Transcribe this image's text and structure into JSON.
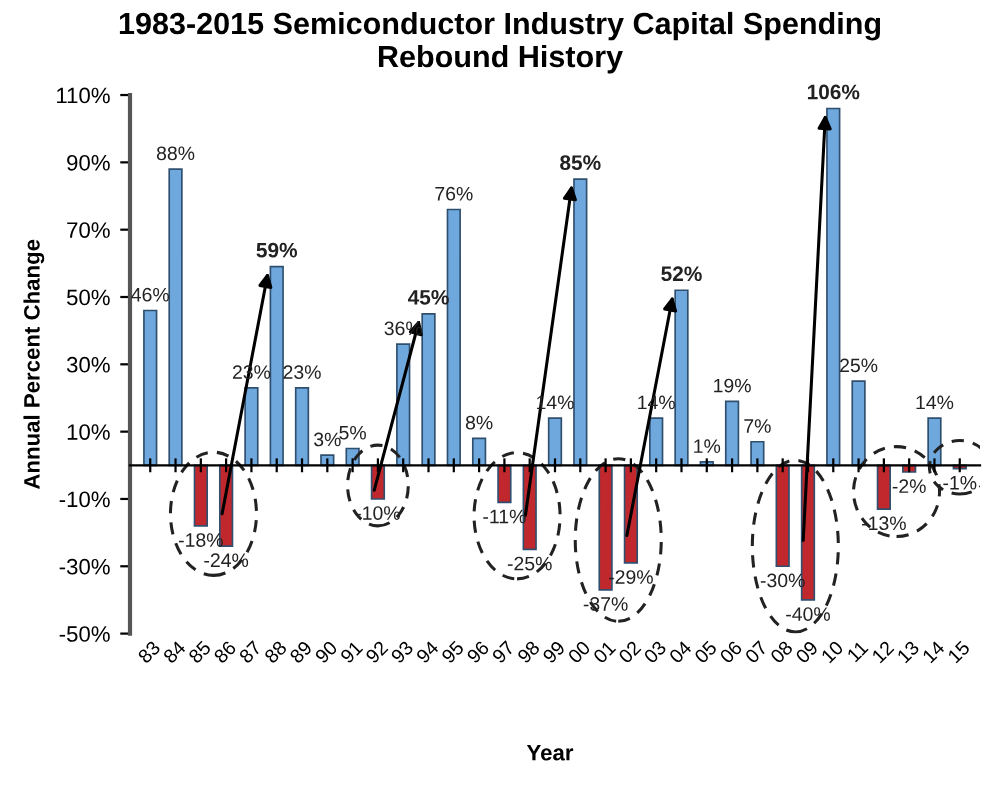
{
  "chart_data": {
    "type": "bar",
    "title": "1983-2015 Semiconductor Industry Capital Spending\nRebound History",
    "xlabel": "Year",
    "ylabel": "Annual Percent Change",
    "categories": [
      "83",
      "84",
      "85",
      "86",
      "87",
      "88",
      "89",
      "90",
      "91",
      "92",
      "93",
      "94",
      "95",
      "96",
      "97",
      "98",
      "99",
      "00",
      "01",
      "02",
      "03",
      "04",
      "05",
      "06",
      "07",
      "08",
      "09",
      "10",
      "11",
      "12",
      "13",
      "14",
      "15"
    ],
    "values": [
      46,
      88,
      -18,
      -24,
      23,
      59,
      23,
      3,
      5,
      -10,
      36,
      45,
      76,
      8,
      -11,
      -25,
      14,
      85,
      -37,
      -29,
      14,
      52,
      1,
      19,
      7,
      -30,
      -40,
      106,
      25,
      -13,
      -2,
      14,
      -1
    ],
    "value_labels": [
      "46%",
      "88%",
      "-18%",
      "-24%",
      "23%",
      "59%",
      "23%",
      "3%",
      "5%",
      "-10%",
      "36%",
      "45%",
      "76%",
      "8%",
      "-11%",
      "-25%",
      "14%",
      "85%",
      "-37%",
      "-29%",
      "14%",
      "52%",
      "1%",
      "19%",
      "7%",
      "-30%",
      "-40%",
      "106%",
      "25%",
      "-13%",
      "-2%",
      "14%",
      "-1%"
    ],
    "colors": [
      "#6fa8dc",
      "#6fa8dc",
      "#c0282d",
      "#c0282d",
      "#6fa8dc",
      "#6fa8dc",
      "#6fa8dc",
      "#6fa8dc",
      "#6fa8dc",
      "#c0282d",
      "#6fa8dc",
      "#6fa8dc",
      "#6fa8dc",
      "#6fa8dc",
      "#c0282d",
      "#c0282d",
      "#6fa8dc",
      "#6fa8dc",
      "#c0282d",
      "#c0282d",
      "#6fa8dc",
      "#6fa8dc",
      "#6fa8dc",
      "#6fa8dc",
      "#6fa8dc",
      "#c0282d",
      "#c0282d",
      "#6fa8dc",
      "#6fa8dc",
      "#c0282d",
      "#c0282d",
      "#6fa8dc",
      "#c0282d"
    ],
    "ylim": [
      -50,
      110
    ],
    "yticks": [
      {
        "value": -50,
        "label": "-50%"
      },
      {
        "value": -30,
        "label": "-30%"
      },
      {
        "value": -10,
        "label": "-10%"
      },
      {
        "value": 10,
        "label": "10%"
      },
      {
        "value": 30,
        "label": "30%"
      },
      {
        "value": 50,
        "label": "50%"
      },
      {
        "value": 70,
        "label": "70%"
      },
      {
        "value": 90,
        "label": "90%"
      },
      {
        "value": 110,
        "label": "110%"
      }
    ],
    "grid": false
  }
}
